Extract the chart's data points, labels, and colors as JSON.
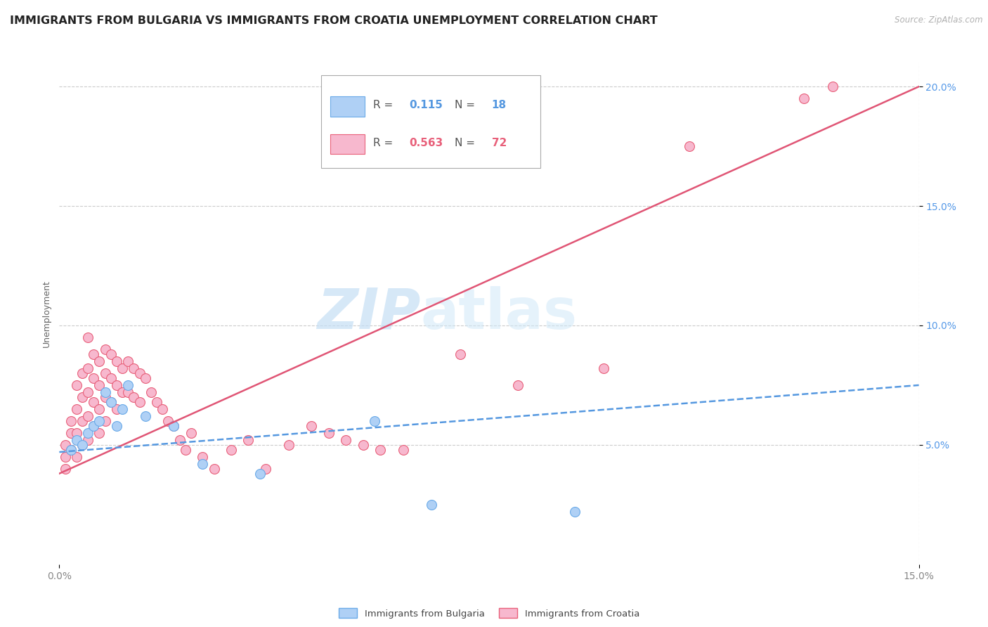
{
  "title": "IMMIGRANTS FROM BULGARIA VS IMMIGRANTS FROM CROATIA UNEMPLOYMENT CORRELATION CHART",
  "source": "Source: ZipAtlas.com",
  "ylabel": "Unemployment",
  "watermark_zip": "ZIP",
  "watermark_atlas": "atlas",
  "xlim": [
    0.0,
    0.15
  ],
  "ylim": [
    0.0,
    0.21
  ],
  "yticks": [
    0.05,
    0.1,
    0.15,
    0.2
  ],
  "ytick_labels": [
    "5.0%",
    "10.0%",
    "15.0%",
    "20.0%"
  ],
  "xtick_labels": [
    "0.0%",
    "15.0%"
  ],
  "bulgaria_color": "#afd0f5",
  "bulgaria_edge_color": "#6aaae8",
  "croatia_color": "#f7b8ce",
  "croatia_edge_color": "#e8607a",
  "bulgaria_line_color": "#5598e0",
  "croatia_line_color": "#e05575",
  "legend_R_bulgaria": "0.115",
  "legend_N_bulgaria": "18",
  "legend_R_croatia": "0.563",
  "legend_N_croatia": "72",
  "bulgaria_scatter_x": [
    0.002,
    0.003,
    0.004,
    0.005,
    0.006,
    0.007,
    0.008,
    0.009,
    0.01,
    0.011,
    0.012,
    0.015,
    0.02,
    0.025,
    0.035,
    0.055,
    0.065,
    0.09
  ],
  "bulgaria_scatter_y": [
    0.048,
    0.052,
    0.05,
    0.055,
    0.058,
    0.06,
    0.072,
    0.068,
    0.058,
    0.065,
    0.075,
    0.062,
    0.058,
    0.042,
    0.038,
    0.06,
    0.025,
    0.022
  ],
  "croatia_scatter_x": [
    0.001,
    0.001,
    0.001,
    0.002,
    0.002,
    0.002,
    0.003,
    0.003,
    0.003,
    0.003,
    0.004,
    0.004,
    0.004,
    0.004,
    0.005,
    0.005,
    0.005,
    0.005,
    0.005,
    0.006,
    0.006,
    0.006,
    0.006,
    0.007,
    0.007,
    0.007,
    0.007,
    0.008,
    0.008,
    0.008,
    0.008,
    0.009,
    0.009,
    0.009,
    0.01,
    0.01,
    0.01,
    0.011,
    0.011,
    0.012,
    0.012,
    0.013,
    0.013,
    0.014,
    0.014,
    0.015,
    0.016,
    0.017,
    0.018,
    0.019,
    0.02,
    0.021,
    0.022,
    0.023,
    0.025,
    0.027,
    0.03,
    0.033,
    0.036,
    0.04,
    0.044,
    0.047,
    0.05,
    0.053,
    0.056,
    0.06,
    0.07,
    0.08,
    0.095,
    0.11,
    0.13,
    0.135
  ],
  "croatia_scatter_y": [
    0.05,
    0.045,
    0.04,
    0.06,
    0.055,
    0.048,
    0.075,
    0.065,
    0.055,
    0.045,
    0.08,
    0.07,
    0.06,
    0.05,
    0.095,
    0.082,
    0.072,
    0.062,
    0.052,
    0.088,
    0.078,
    0.068,
    0.058,
    0.085,
    0.075,
    0.065,
    0.055,
    0.09,
    0.08,
    0.07,
    0.06,
    0.088,
    0.078,
    0.068,
    0.085,
    0.075,
    0.065,
    0.082,
    0.072,
    0.085,
    0.072,
    0.082,
    0.07,
    0.08,
    0.068,
    0.078,
    0.072,
    0.068,
    0.065,
    0.06,
    0.058,
    0.052,
    0.048,
    0.055,
    0.045,
    0.04,
    0.048,
    0.052,
    0.04,
    0.05,
    0.058,
    0.055,
    0.052,
    0.05,
    0.048,
    0.048,
    0.088,
    0.075,
    0.082,
    0.175,
    0.195,
    0.2
  ],
  "grid_color": "#cccccc",
  "title_fontsize": 11.5,
  "axis_label_fontsize": 9,
  "tick_fontsize": 10,
  "legend_fontsize": 11,
  "bulgaria_line_x0": 0.0,
  "bulgaria_line_y0": 0.047,
  "bulgaria_line_x1": 0.15,
  "bulgaria_line_y1": 0.075,
  "croatia_line_x0": 0.0,
  "croatia_line_y0": 0.038,
  "croatia_line_x1": 0.15,
  "croatia_line_y1": 0.2
}
